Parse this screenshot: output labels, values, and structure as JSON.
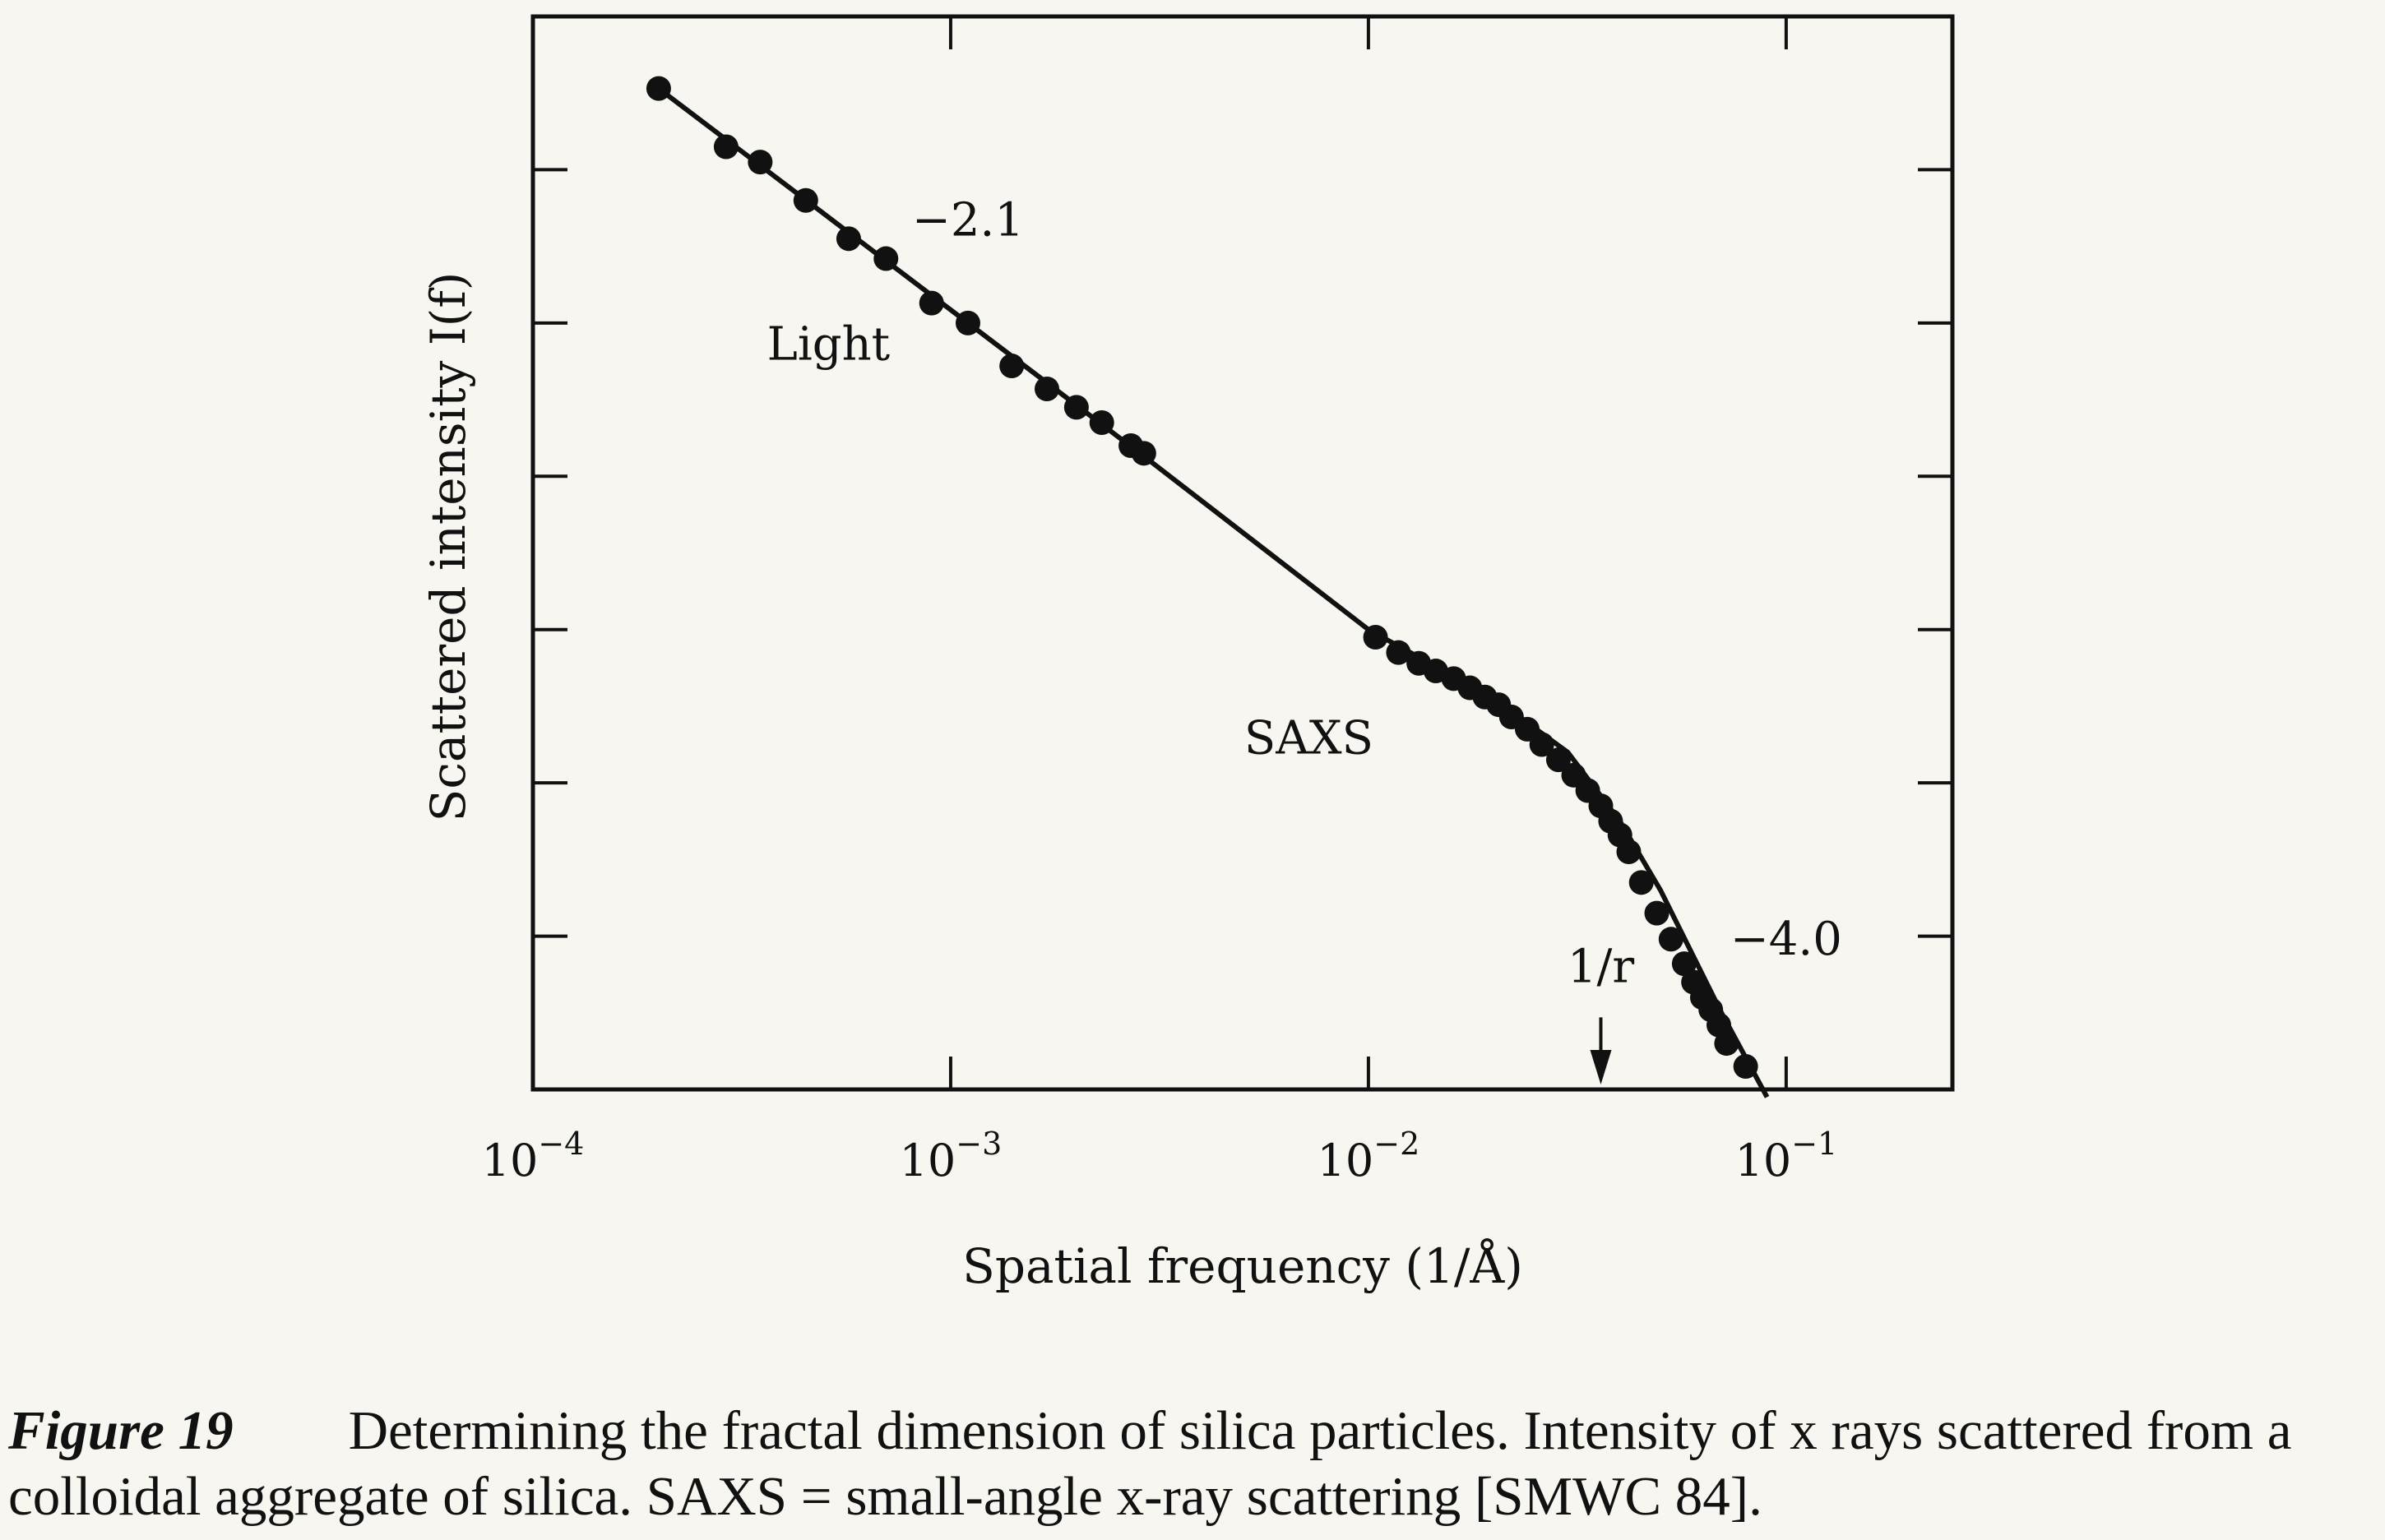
{
  "chart_data": {
    "type": "scatter",
    "xlabel": "Spatial frequency (1/Å)",
    "ylabel": "Scattered intensity I(f)",
    "x_scale": "log",
    "xlim": [
      0.0001,
      0.25
    ],
    "ylim": [
      0,
      7
    ],
    "y_tick_labels_shown": false,
    "x_tick_labels": [
      {
        "base": "10",
        "exp": "−4"
      },
      {
        "base": "10",
        "exp": "−3"
      },
      {
        "base": "10",
        "exp": "−2"
      },
      {
        "base": "10",
        "exp": "−1"
      }
    ],
    "x_ticks": [
      0.0001,
      0.001,
      0.01,
      0.1
    ],
    "y_ticks": [
      1,
      2,
      3,
      4,
      5,
      6
    ],
    "grid": false,
    "annotations": [
      {
        "text": "−2.1",
        "x": 0.0011,
        "y": 5.57
      },
      {
        "text": "Light",
        "x": 0.00051,
        "y": 4.76
      },
      {
        "text": "SAXS",
        "x": 0.0072,
        "y": 2.19
      },
      {
        "text": "−4.0",
        "x": 0.1,
        "y": 0.88
      },
      {
        "text": "1/r",
        "x": 0.036,
        "y": 0.7
      }
    ],
    "arrow_marker": {
      "label": "1/r",
      "x": 0.036
    },
    "fit_line": {
      "x": [
        0.0002,
        0.003,
        0.01,
        0.02,
        0.03,
        0.04,
        0.05,
        0.07,
        0.09
      ],
      "y": [
        6.53,
        4.1,
        3.0,
        2.55,
        2.2,
        1.75,
        1.3,
        0.5,
        -0.05
      ]
    },
    "series": [
      {
        "x": [
          0.0002,
          0.00029,
          0.00035,
          0.00045,
          0.00057,
          0.0007,
          0.0009,
          0.0011,
          0.0014,
          0.0017,
          0.002,
          0.0023,
          0.0027,
          0.0029
        ],
        "y": [
          6.53,
          6.15,
          6.05,
          5.8,
          5.55,
          5.42,
          5.13,
          5.0,
          4.72,
          4.57,
          4.45,
          4.35,
          4.2,
          4.15
        ]
      },
      {
        "x": [
          0.0104,
          0.0118,
          0.0132,
          0.0145,
          0.016,
          0.0175,
          0.019,
          0.0205,
          0.022,
          0.024,
          0.026,
          0.0285,
          0.031,
          0.0335,
          0.036,
          0.038,
          0.04,
          0.042,
          0.045,
          0.049,
          0.053,
          0.057,
          0.06,
          0.063,
          0.066,
          0.069,
          0.072,
          0.08
        ],
        "y": [
          2.95,
          2.85,
          2.78,
          2.73,
          2.68,
          2.62,
          2.56,
          2.51,
          2.43,
          2.35,
          2.25,
          2.15,
          2.05,
          1.95,
          1.85,
          1.75,
          1.66,
          1.55,
          1.35,
          1.15,
          0.98,
          0.82,
          0.7,
          0.6,
          0.52,
          0.42,
          0.3,
          0.15
        ]
      }
    ]
  },
  "caption": {
    "label": "Figure 19",
    "text": "Determining the fractal dimension of silica particles. Intensity of x rays scattered from a colloidal aggregate of silica. SAXS = small-angle x-ray scattering [SMWC 84]."
  }
}
